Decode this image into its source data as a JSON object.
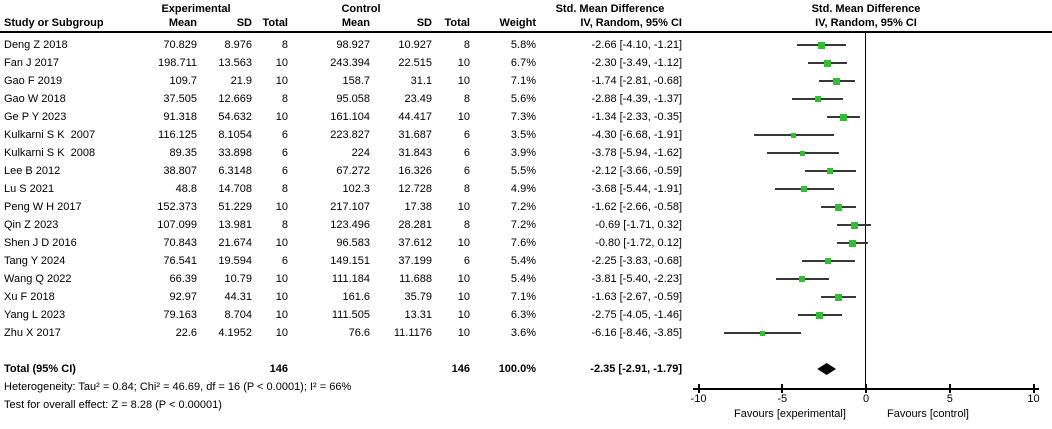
{
  "headers": {
    "experimental": "Experimental",
    "control": "Control",
    "smd_text": "Std. Mean Difference",
    "smd_plot": "Std. Mean Difference"
  },
  "columns": {
    "study": "Study or Subgroup",
    "mean": "Mean",
    "sd": "SD",
    "total": "Total",
    "weight": "Weight",
    "ci": "IV, Random, 95% CI"
  },
  "chart_data": {
    "type": "forest",
    "title": "Std. Mean Difference",
    "effect_model": "IV, Random, 95% CI",
    "axis": {
      "min": -10,
      "max": 10,
      "ticks": [
        -10,
        -5,
        0,
        5,
        10
      ]
    },
    "favours_left": "Favours [experimental]",
    "favours_right": "Favours [control]",
    "marker_color": "#2fc12f",
    "line_color": "#383838",
    "studies": [
      {
        "label": "Deng Z 2018",
        "exp": {
          "mean": "70.829",
          "sd": "8.976",
          "total": "8"
        },
        "ctrl": {
          "mean": "98.927",
          "sd": "10.927",
          "total": "8"
        },
        "weight": "5.8%",
        "weight_pct": 5.8,
        "ci_text": "-2.66 [-4.10, -1.21]",
        "est": -2.66,
        "lo": -4.1,
        "hi": -1.21
      },
      {
        "label": "Fan J 2017",
        "exp": {
          "mean": "198.711",
          "sd": "13.563",
          "total": "10"
        },
        "ctrl": {
          "mean": "243.394",
          "sd": "22.515",
          "total": "10"
        },
        "weight": "6.7%",
        "weight_pct": 6.7,
        "ci_text": "-2.30 [-3.49, -1.12]",
        "est": -2.3,
        "lo": -3.49,
        "hi": -1.12
      },
      {
        "label": "Gao F 2019",
        "exp": {
          "mean": "109.7",
          "sd": "21.9",
          "total": "10"
        },
        "ctrl": {
          "mean": "158.7",
          "sd": "31.1",
          "total": "10"
        },
        "weight": "7.1%",
        "weight_pct": 7.1,
        "ci_text": "-1.74 [-2.81, -0.68]",
        "est": -1.74,
        "lo": -2.81,
        "hi": -0.68
      },
      {
        "label": "Gao W 2018",
        "exp": {
          "mean": "37.505",
          "sd": "12.669",
          "total": "8"
        },
        "ctrl": {
          "mean": "95.058",
          "sd": "23.49",
          "total": "8"
        },
        "weight": "5.6%",
        "weight_pct": 5.6,
        "ci_text": "-2.88 [-4.39, -1.37]",
        "est": -2.88,
        "lo": -4.39,
        "hi": -1.37
      },
      {
        "label": "Ge P Y 2023",
        "exp": {
          "mean": "91.318",
          "sd": "54.632",
          "total": "10"
        },
        "ctrl": {
          "mean": "161.104",
          "sd": "44.417",
          "total": "10"
        },
        "weight": "7.3%",
        "weight_pct": 7.3,
        "ci_text": "-1.34 [-2.33, -0.35]",
        "est": -1.34,
        "lo": -2.33,
        "hi": -0.35
      },
      {
        "label": "Kulkarni S K  2007",
        "exp": {
          "mean": "116.125",
          "sd": "8.1054",
          "total": "6"
        },
        "ctrl": {
          "mean": "223.827",
          "sd": "31.687",
          "total": "6"
        },
        "weight": "3.5%",
        "weight_pct": 3.5,
        "ci_text": "-4.30 [-6.68, -1.91]",
        "est": -4.3,
        "lo": -6.68,
        "hi": -1.91
      },
      {
        "label": "Kulkarni S K  2008",
        "exp": {
          "mean": "89.35",
          "sd": "33.898",
          "total": "6"
        },
        "ctrl": {
          "mean": "224",
          "sd": "31.843",
          "total": "6"
        },
        "weight": "3.9%",
        "weight_pct": 3.9,
        "ci_text": "-3.78 [-5.94, -1.62]",
        "est": -3.78,
        "lo": -5.94,
        "hi": -1.62
      },
      {
        "label": "Lee B 2012",
        "exp": {
          "mean": "38.807",
          "sd": "6.3148",
          "total": "6"
        },
        "ctrl": {
          "mean": "67.272",
          "sd": "16.326",
          "total": "6"
        },
        "weight": "5.5%",
        "weight_pct": 5.5,
        "ci_text": "-2.12 [-3.66, -0.59]",
        "est": -2.12,
        "lo": -3.66,
        "hi": -0.59
      },
      {
        "label": "Lu S 2021",
        "exp": {
          "mean": "48.8",
          "sd": "14.708",
          "total": "8"
        },
        "ctrl": {
          "mean": "102.3",
          "sd": "12.728",
          "total": "8"
        },
        "weight": "4.9%",
        "weight_pct": 4.9,
        "ci_text": "-3.68 [-5.44, -1.91]",
        "est": -3.68,
        "lo": -5.44,
        "hi": -1.91
      },
      {
        "label": "Peng W H 2017",
        "exp": {
          "mean": "152.373",
          "sd": "51.229",
          "total": "10"
        },
        "ctrl": {
          "mean": "217.107",
          "sd": "17.38",
          "total": "10"
        },
        "weight": "7.2%",
        "weight_pct": 7.2,
        "ci_text": "-1.62 [-2.66, -0.58]",
        "est": -1.62,
        "lo": -2.66,
        "hi": -0.58
      },
      {
        "label": "Qin Z 2023",
        "exp": {
          "mean": "107.099",
          "sd": "13.981",
          "total": "8"
        },
        "ctrl": {
          "mean": "123.496",
          "sd": "28.281",
          "total": "8"
        },
        "weight": "7.2%",
        "weight_pct": 7.2,
        "ci_text": "-0.69 [-1.71, 0.32]",
        "est": -0.69,
        "lo": -1.71,
        "hi": 0.32
      },
      {
        "label": "Shen J D 2016",
        "exp": {
          "mean": "70.843",
          "sd": "21.674",
          "total": "10"
        },
        "ctrl": {
          "mean": "96.583",
          "sd": "37.612",
          "total": "10"
        },
        "weight": "7.6%",
        "weight_pct": 7.6,
        "ci_text": "-0.80 [-1.72, 0.12]",
        "est": -0.8,
        "lo": -1.72,
        "hi": 0.12
      },
      {
        "label": "Tang Y 2024",
        "exp": {
          "mean": "76.541",
          "sd": "19.594",
          "total": "6"
        },
        "ctrl": {
          "mean": "149.151",
          "sd": "37.199",
          "total": "6"
        },
        "weight": "5.4%",
        "weight_pct": 5.4,
        "ci_text": "-2.25 [-3.83, -0.68]",
        "est": -2.25,
        "lo": -3.83,
        "hi": -0.68
      },
      {
        "label": "Wang Q 2022",
        "exp": {
          "mean": "66.39",
          "sd": "10.79",
          "total": "10"
        },
        "ctrl": {
          "mean": "111.184",
          "sd": "11.688",
          "total": "10"
        },
        "weight": "5.4%",
        "weight_pct": 5.4,
        "ci_text": "-3.81 [-5.40, -2.23]",
        "est": -3.81,
        "lo": -5.4,
        "hi": -2.23
      },
      {
        "label": "Xu F 2018",
        "exp": {
          "mean": "92.97",
          "sd": "44.31",
          "total": "10"
        },
        "ctrl": {
          "mean": "161.6",
          "sd": "35.79",
          "total": "10"
        },
        "weight": "7.1%",
        "weight_pct": 7.1,
        "ci_text": "-1.63 [-2.67, -0.59]",
        "est": -1.63,
        "lo": -2.67,
        "hi": -0.59
      },
      {
        "label": "Yang L 2023",
        "exp": {
          "mean": "79.163",
          "sd": "8.704",
          "total": "10"
        },
        "ctrl": {
          "mean": "111.505",
          "sd": "13.31",
          "total": "10"
        },
        "weight": "6.3%",
        "weight_pct": 6.3,
        "ci_text": "-2.75 [-4.05, -1.46]",
        "est": -2.75,
        "lo": -4.05,
        "hi": -1.46
      },
      {
        "label": "Zhu X 2017",
        "exp": {
          "mean": "22.6",
          "sd": "4.1952",
          "total": "10"
        },
        "ctrl": {
          "mean": "76.6",
          "sd": "11.1176",
          "total": "10"
        },
        "weight": "3.6%",
        "weight_pct": 3.6,
        "ci_text": "-6.16 [-8.46, -3.85]",
        "est": -6.16,
        "lo": -8.46,
        "hi": -3.85
      }
    ],
    "total": {
      "label": "Total (95% CI)",
      "exp_total": "146",
      "ctrl_total": "146",
      "weight": "100.0%",
      "ci_text": "-2.35 [-2.91, -1.79]",
      "est": -2.35,
      "lo": -2.91,
      "hi": -1.79
    },
    "heterogeneity": "Heterogeneity: Tau² = 0.84; Chi² = 46.69, df = 16 (P < 0.0001); I² = 66%",
    "overall_effect": "Test for overall effect: Z = 8.28 (P < 0.00001)"
  }
}
